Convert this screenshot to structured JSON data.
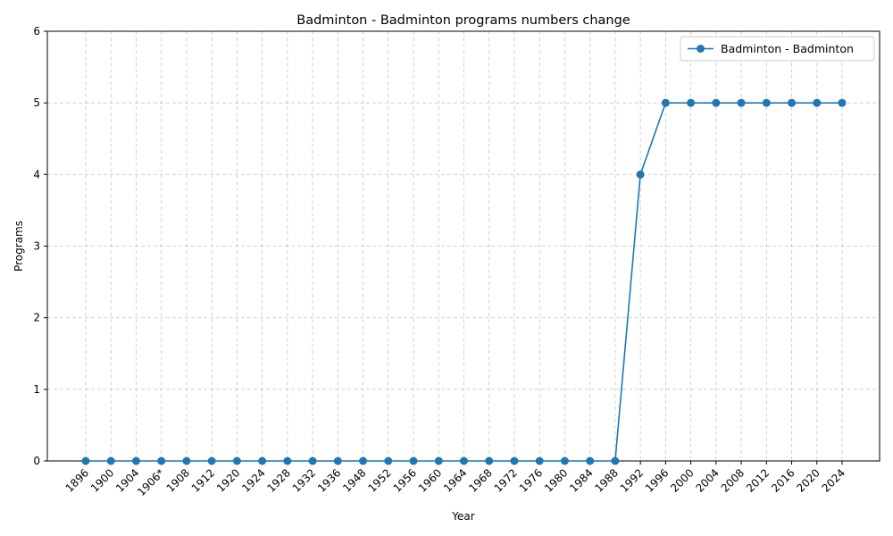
{
  "chart_data": {
    "type": "line",
    "title": "Badminton - Badminton programs numbers change",
    "xlabel": "Year",
    "ylabel": "Programs",
    "categories": [
      "1896",
      "1900",
      "1904",
      "1906*",
      "1908",
      "1912",
      "1920",
      "1924",
      "1928",
      "1932",
      "1936",
      "1948",
      "1952",
      "1956",
      "1960",
      "1964",
      "1968",
      "1972",
      "1976",
      "1980",
      "1984",
      "1988",
      "1992",
      "1996",
      "2000",
      "2004",
      "2008",
      "2012",
      "2016",
      "2020",
      "2024"
    ],
    "series": [
      {
        "name": "Badminton - Badminton",
        "color": "#1f77b4",
        "values": [
          0,
          0,
          0,
          0,
          0,
          0,
          0,
          0,
          0,
          0,
          0,
          0,
          0,
          0,
          0,
          0,
          0,
          0,
          0,
          0,
          0,
          0,
          4,
          5,
          5,
          5,
          5,
          5,
          5,
          5,
          5
        ]
      }
    ],
    "ylim": [
      0,
      6
    ],
    "yticks": [
      0,
      1,
      2,
      3,
      4,
      5,
      6
    ],
    "grid": true,
    "grid_style": "dashed",
    "legend_position": "top-right"
  }
}
